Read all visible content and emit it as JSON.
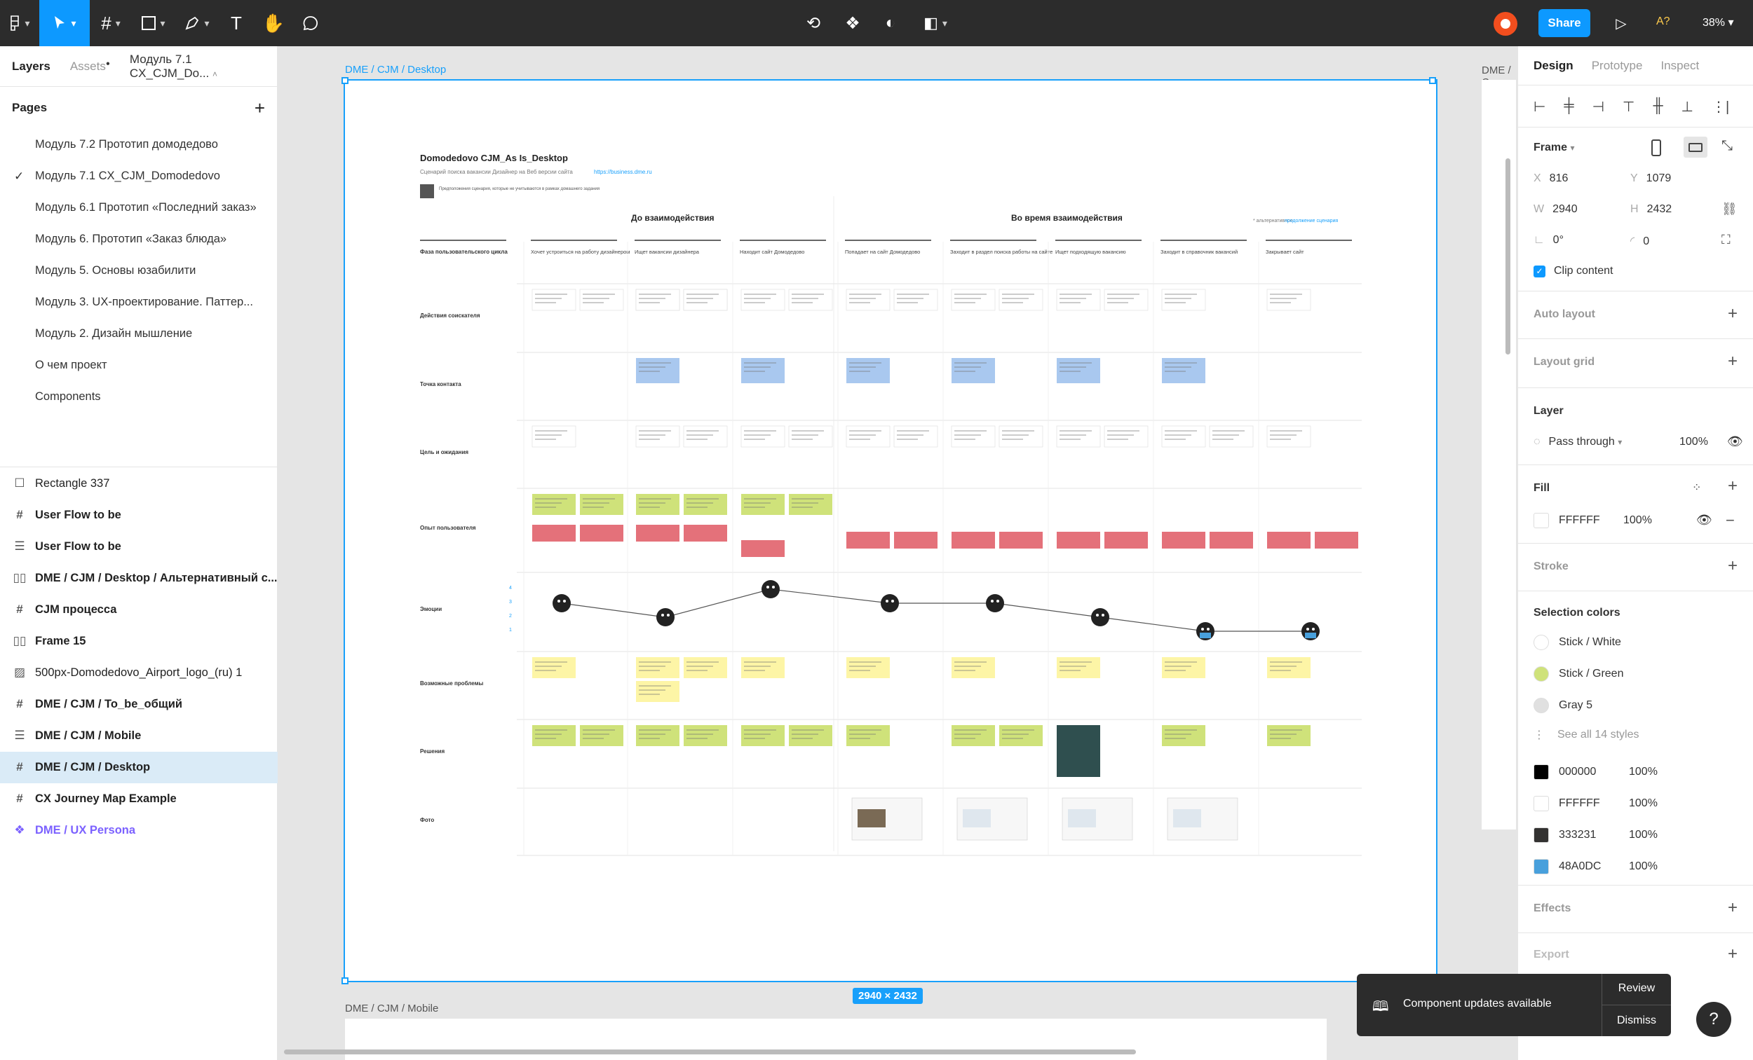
{
  "toolbar": {
    "share_label": "Share",
    "zoom": "38%",
    "user_initials": "A?"
  },
  "left_panel": {
    "tabs": {
      "layers": "Layers",
      "assets": "Assets",
      "page_name": "Модуль 7.1 CX_CJM_Do..."
    },
    "pages_title": "Pages",
    "pages": [
      {
        "label": "Модуль 7.2 Прототип домодедово",
        "active": false
      },
      {
        "label": "Модуль 7.1 CX_CJM_Domodedovo",
        "active": true
      },
      {
        "label": "Модуль 6.1 Прототип «Последний заказ»",
        "active": false
      },
      {
        "label": "Модуль 6. Прототип «Заказ блюда»",
        "active": false
      },
      {
        "label": "Модуль 5. Основы юзабилити",
        "active": false
      },
      {
        "label": "Модуль 3. UX-проектирование. Паттер...",
        "active": false
      },
      {
        "label": "Модуль 2. Дизайн мышление",
        "active": false
      },
      {
        "label": "О чем проект",
        "active": false
      },
      {
        "label": "Components",
        "active": false
      }
    ],
    "layers": [
      {
        "label": "Rectangle 337",
        "icon": "rectangle-icon"
      },
      {
        "label": "User Flow to be",
        "icon": "frame-icon"
      },
      {
        "label": "User Flow to be",
        "icon": "auto-layout-vertical-icon"
      },
      {
        "label": "DME / CJM / Desktop / Альтернативный с...",
        "icon": "auto-layout-horizontal-icon"
      },
      {
        "label": "CJM процесса",
        "icon": "frame-icon"
      },
      {
        "label": "Frame 15",
        "icon": "auto-layout-horizontal-icon"
      },
      {
        "label": "500px-Domodedovo_Airport_logo_(ru) 1",
        "icon": "image-icon"
      },
      {
        "label": "DME / CJM / To_be_общий",
        "icon": "frame-icon"
      },
      {
        "label": "DME / CJM / Mobile",
        "icon": "auto-layout-vertical-icon"
      },
      {
        "label": "DME / CJM / Desktop",
        "icon": "frame-icon"
      },
      {
        "label": "CX Journey Map Example",
        "icon": "frame-icon"
      },
      {
        "label": "DME / UX Persona",
        "icon": "component-icon"
      }
    ]
  },
  "canvas": {
    "frame_label": "DME / CJM / Desktop",
    "right_frame_label": "DME / C",
    "size_badge": "2940 × 2432",
    "mobile_frame_label": "DME / CJM / Mobile",
    "cjm": {
      "title": "Domodedovo CJM_As Is_Desktop",
      "subtitle": "Сценарий поиска вакансии Дизайнер на Веб версии сайта",
      "subtitle_link": "https://business.dme.ru",
      "legend_text": "Предположения сценария, которые не учитываются в рамках домашнего задания",
      "phase_before": "До взаимодействия",
      "phase_during": "Во время взаимодействия",
      "alt_note": "* альтернативное",
      "alt_link": "продолжение сценария",
      "stages_label": "Фаза пользовательского цикла",
      "stages": [
        "Хочет устроиться на работу дизайнером",
        "Ищет вакансии дизайнера",
        "Находит сайт Домодедово",
        "Попадает на сайт Домодедово",
        "Заходит в раздел поиска работы на сайте",
        "Ищет подходящую вакансию",
        "Заходит в справочник вакансий",
        "Закрывает сайт"
      ],
      "rows": [
        "Действия соискателя",
        "Точка контакта",
        "Цель и ожидания",
        "Опыт пользователя",
        "Эмоции",
        "Возможные проблемы",
        "Решения",
        "Фото"
      ],
      "emotion_scale": [
        "4",
        "3",
        "2",
        "1"
      ]
    }
  },
  "right_panel": {
    "tabs": {
      "design": "Design",
      "prototype": "Prototype",
      "inspect": "Inspect"
    },
    "frame": {
      "title": "Frame",
      "x": "816",
      "y": "1079",
      "w": "2940",
      "h": "2432",
      "rotation": "0°",
      "radius": "0",
      "clip_content": "Clip content"
    },
    "auto_layout": "Auto layout",
    "layout_grid": "Layout grid",
    "layer": {
      "title": "Layer",
      "blend": "Pass through",
      "opacity": "100%"
    },
    "fill": {
      "title": "Fill",
      "hex": "FFFFFF",
      "opacity": "100%"
    },
    "stroke": "Stroke",
    "selection_colors": {
      "title": "Selection colors",
      "styles": [
        {
          "name": "Stick / White",
          "color": "#ffffff"
        },
        {
          "name": "Stick / Green",
          "color": "#cfe27a"
        },
        {
          "name": "Gray 5",
          "color": "#e0e0e0"
        }
      ],
      "see_all": "See all 14 styles",
      "colors": [
        {
          "hex": "000000",
          "opacity": "100%",
          "color": "#000000"
        },
        {
          "hex": "FFFFFF",
          "opacity": "100%",
          "color": "#ffffff"
        },
        {
          "hex": "333231",
          "opacity": "100%",
          "color": "#333231"
        },
        {
          "hex": "48A0DC",
          "opacity": "100%",
          "color": "#48a0dc"
        }
      ]
    },
    "effects": "Effects",
    "export": "Export"
  },
  "toast": {
    "message": "Component updates available",
    "review": "Review",
    "dismiss": "Dismiss"
  },
  "help": "?"
}
